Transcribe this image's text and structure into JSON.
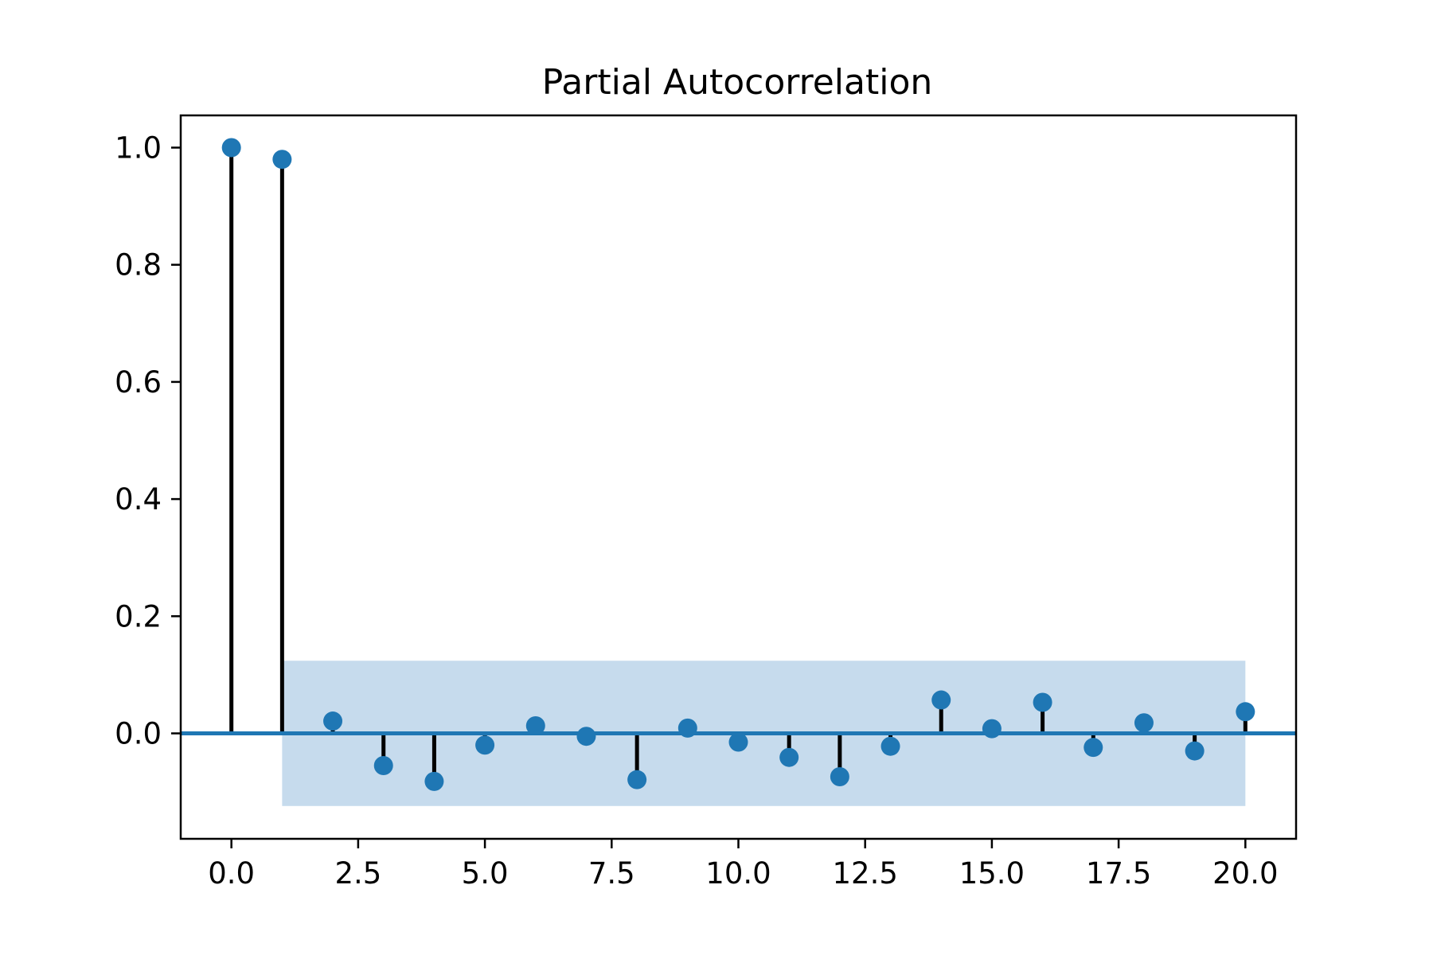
{
  "chart_data": {
    "type": "scatter",
    "subtype": "stem",
    "title": "Partial Autocorrelation",
    "xlabel": "",
    "ylabel": "",
    "xlim": [
      -1,
      21
    ],
    "ylim": [
      -0.18,
      1.055
    ],
    "x_ticks": [
      0.0,
      2.5,
      5.0,
      7.5,
      10.0,
      12.5,
      15.0,
      17.5,
      20.0
    ],
    "x_tick_labels": [
      "0.0",
      "2.5",
      "5.0",
      "7.5",
      "10.0",
      "12.5",
      "15.0",
      "17.5",
      "20.0"
    ],
    "y_ticks": [
      0.0,
      0.2,
      0.4,
      0.6,
      0.8,
      1.0
    ],
    "y_tick_labels": [
      "0.0",
      "0.2",
      "0.4",
      "0.6",
      "0.8",
      "1.0"
    ],
    "grid": false,
    "series": [
      {
        "x": [
          0,
          1,
          2,
          3,
          4,
          5,
          6,
          7,
          8,
          9,
          10,
          11,
          12,
          13,
          14,
          15,
          16,
          17,
          18,
          19,
          20
        ],
        "values": [
          1.0,
          0.98,
          0.021,
          -0.055,
          -0.082,
          -0.02,
          0.013,
          -0.005,
          -0.079,
          0.009,
          -0.015,
          -0.041,
          -0.074,
          -0.022,
          0.057,
          0.008,
          0.053,
          -0.024,
          0.018,
          -0.03,
          0.037
        ]
      }
    ],
    "confidence_band": {
      "x_range": [
        1,
        20
      ],
      "lower": -0.124,
      "upper": 0.124
    },
    "zero_line": 0.0,
    "colors": {
      "marker": "#1f77b4",
      "stem": "#000000",
      "band": "#c6dbed",
      "zero_line": "#1f77b4"
    }
  }
}
